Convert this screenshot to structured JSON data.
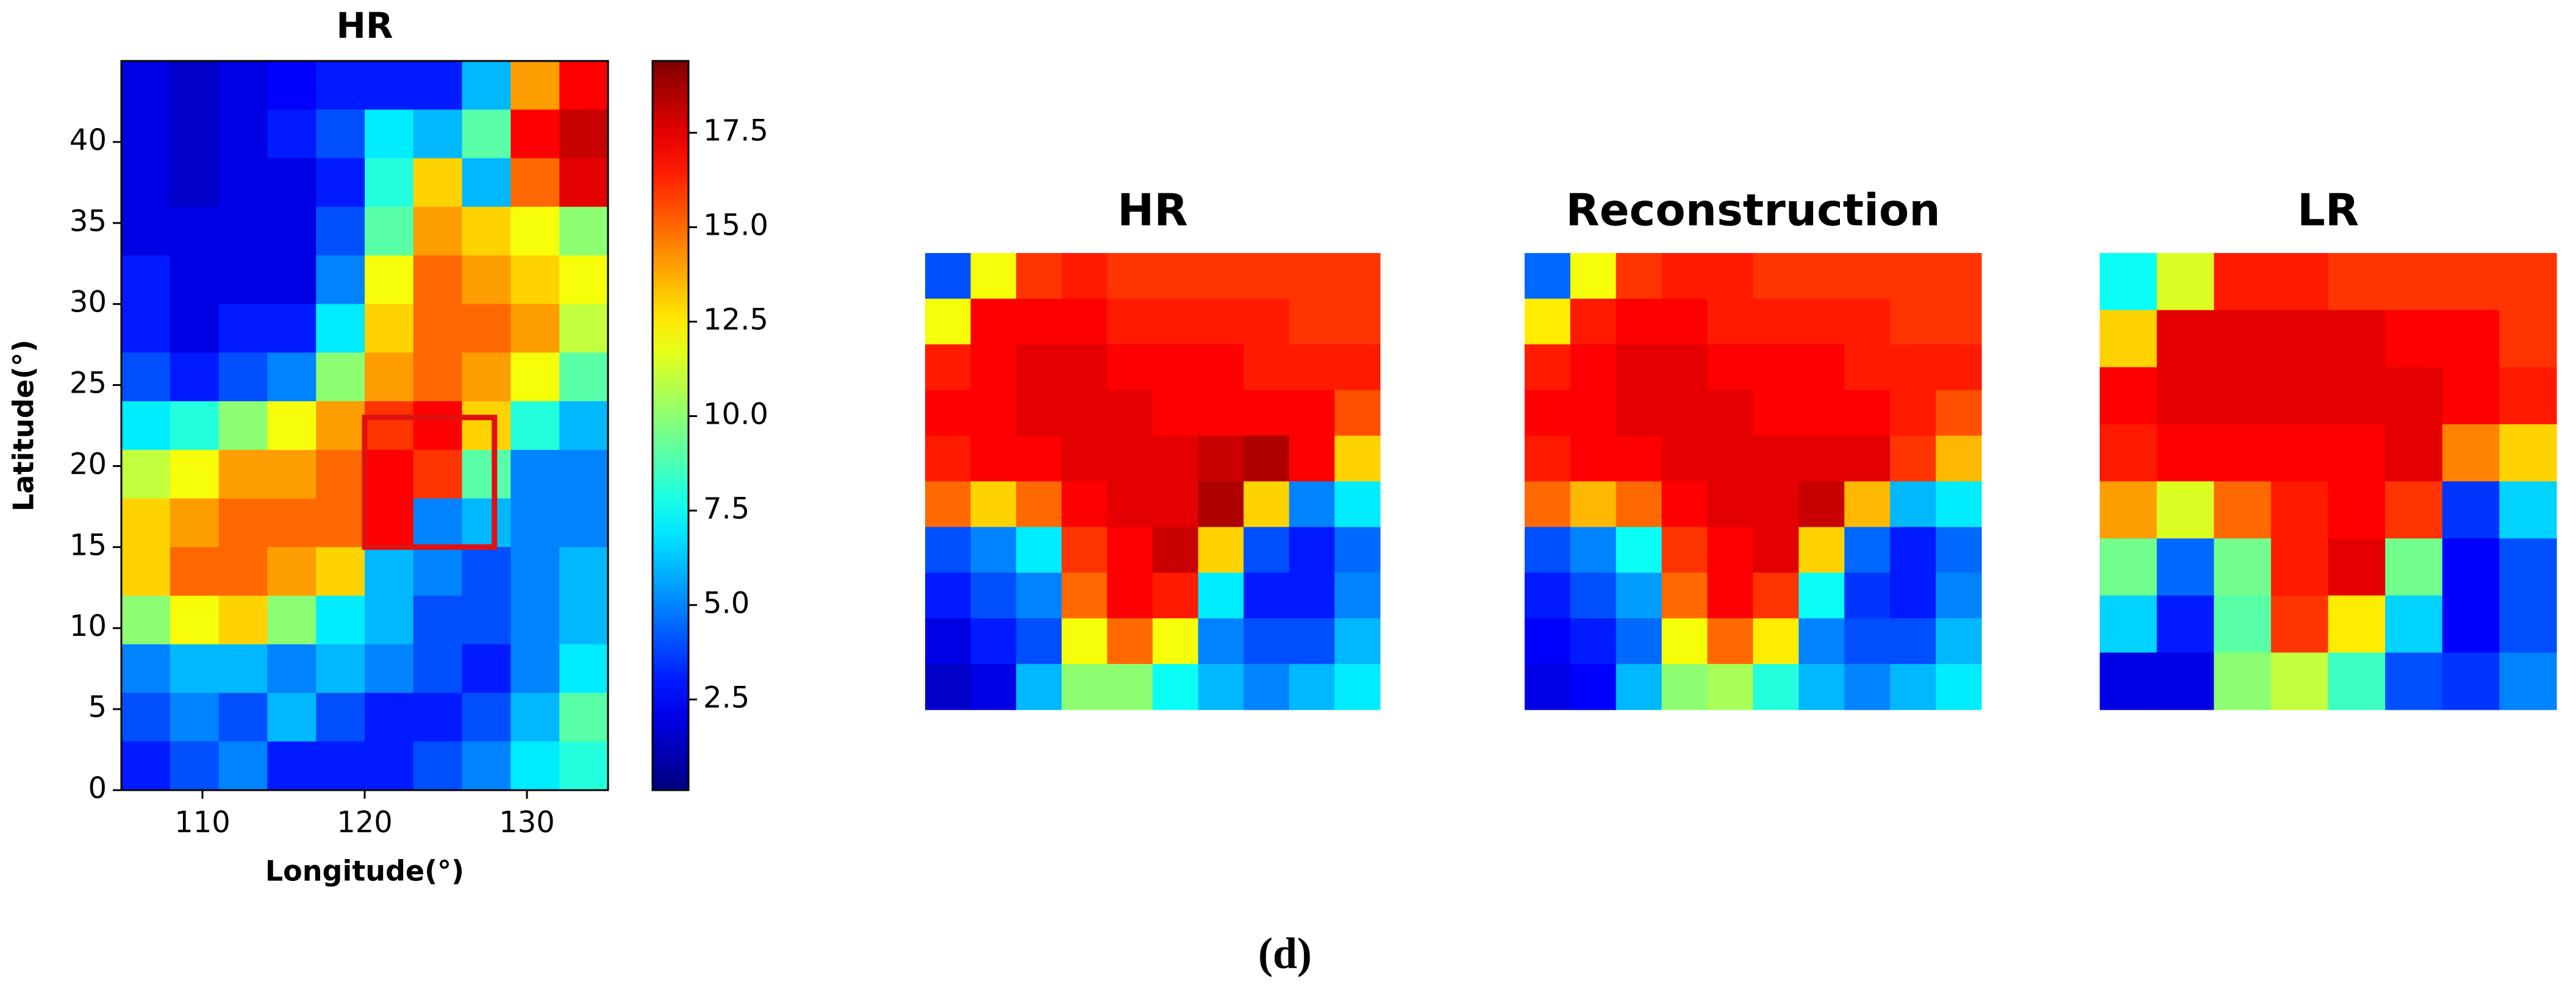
{
  "chart_data": [
    {
      "type": "heatmap",
      "title": "HR",
      "x_label": "Longitude(°)",
      "y_label": "Latitude(°)",
      "colormap": "jet",
      "xlim": [
        105,
        135
      ],
      "ylim": [
        0,
        45
      ],
      "xticks": [
        110,
        120,
        130
      ],
      "yticks": [
        0,
        5,
        10,
        15,
        20,
        25,
        30,
        35,
        40
      ],
      "clim": [
        0.1,
        19.4
      ],
      "colorbar": {
        "ticks": [
          2.5,
          {
            "value": 5,
            "label": "5.0"
          },
          7.5,
          {
            "value": 10,
            "label": "10.0"
          },
          12.5,
          {
            "value": 15,
            "label": "15.0"
          },
          17.5
        ]
      },
      "highlight_box": {
        "x": [
          120,
          128
        ],
        "y": [
          15,
          23
        ],
        "color": "#e01010"
      },
      "z": [
        [
          2,
          1.5,
          2,
          2.5,
          3,
          3,
          3,
          6,
          14,
          17
        ],
        [
          2,
          1.5,
          2,
          3,
          4,
          7,
          6,
          9,
          17,
          18
        ],
        [
          2,
          1.5,
          2,
          2,
          3,
          8,
          13,
          6,
          15,
          17.5
        ],
        [
          2,
          2,
          2,
          2,
          4,
          9,
          14,
          13,
          12,
          10
        ],
        [
          3,
          2,
          2,
          2,
          5,
          12,
          15,
          14,
          13,
          12
        ],
        [
          3,
          2,
          3,
          3,
          7,
          13,
          15,
          15,
          14,
          11
        ],
        [
          4,
          3,
          4,
          5,
          10,
          14,
          15,
          14,
          12,
          9
        ],
        [
          7,
          8,
          10,
          12,
          14,
          16,
          17,
          13,
          8,
          6
        ],
        [
          11,
          12,
          14,
          14,
          15,
          17,
          16,
          9,
          5,
          5
        ],
        [
          13,
          14,
          15,
          15,
          15,
          17,
          5,
          6,
          5,
          5
        ],
        [
          13,
          15,
          15,
          14,
          13,
          6,
          5,
          4,
          5,
          6
        ],
        [
          10,
          12,
          13,
          10,
          7,
          6,
          4,
          4,
          5,
          6
        ],
        [
          5,
          6,
          6,
          5,
          6,
          5,
          4,
          3,
          5,
          7
        ],
        [
          4,
          5,
          4,
          6,
          4,
          3,
          3,
          4,
          6,
          9
        ],
        [
          3,
          4,
          5,
          3,
          3,
          3,
          4,
          5,
          7,
          8
        ]
      ]
    },
    {
      "type": "heatmap",
      "title": "HR",
      "colormap": "jet",
      "clim": [
        0.1,
        19.4
      ],
      "z": [
        [
          4,
          12,
          16,
          16.5,
          16,
          16,
          16,
          16,
          16,
          16
        ],
        [
          12,
          17,
          17,
          17,
          16.5,
          16.5,
          16.5,
          16.5,
          16,
          16
        ],
        [
          16.5,
          17,
          17.5,
          17.5,
          17,
          17,
          17,
          16.5,
          16.5,
          16.5
        ],
        [
          17,
          17,
          17.5,
          17.5,
          17.5,
          17,
          17,
          17,
          17,
          15.5
        ],
        [
          16.5,
          17,
          17,
          17.5,
          17.5,
          17.5,
          18,
          18.5,
          17,
          13
        ],
        [
          15,
          13,
          15,
          17,
          17.5,
          17.5,
          18.5,
          13,
          5,
          7
        ],
        [
          4,
          5,
          7,
          16,
          17,
          18,
          13,
          4,
          3,
          4.5
        ],
        [
          3,
          4,
          5,
          15,
          17,
          16.5,
          7,
          3,
          3,
          5
        ],
        [
          2,
          3,
          4,
          12,
          15,
          12,
          5,
          4,
          4,
          6
        ],
        [
          1.5,
          2,
          6,
          10,
          10,
          7.5,
          6,
          5,
          6,
          7
        ]
      ]
    },
    {
      "type": "heatmap",
      "title": "Reconstruction",
      "colormap": "jet",
      "clim": [
        0.1,
        19.4
      ],
      "z": [
        [
          4.5,
          12,
          16,
          16.5,
          16.5,
          16,
          16,
          16,
          16,
          16
        ],
        [
          12.5,
          16.5,
          17,
          17,
          16.5,
          16.5,
          16.5,
          16.5,
          16,
          16
        ],
        [
          16.5,
          17,
          17.5,
          17.5,
          17,
          17,
          17,
          16.5,
          16.5,
          16.5
        ],
        [
          17,
          17,
          17.5,
          17.5,
          17.5,
          17,
          17,
          17,
          16.5,
          15.5
        ],
        [
          16.5,
          17,
          17,
          17.5,
          17.5,
          17.5,
          17.5,
          17.5,
          16,
          13.5
        ],
        [
          15,
          13.5,
          15,
          17,
          17.5,
          17.5,
          18,
          13.5,
          6,
          7
        ],
        [
          4,
          5,
          7.5,
          16,
          17,
          17.5,
          13,
          4.5,
          3,
          4.5
        ],
        [
          3,
          4,
          5.5,
          15,
          17,
          16,
          7.5,
          3.5,
          3,
          5
        ],
        [
          2.5,
          3,
          4.5,
          12,
          15,
          12.5,
          5,
          4,
          4,
          6
        ],
        [
          2,
          2.5,
          6,
          10,
          10.5,
          8,
          6,
          5,
          6,
          7
        ]
      ]
    },
    {
      "type": "heatmap",
      "title": "LR",
      "colormap": "jet",
      "clim": [
        0.1,
        19.4
      ],
      "z": [
        [
          7.5,
          11.5,
          16.5,
          16.5,
          16,
          16,
          16,
          16
        ],
        [
          13,
          17.5,
          17.5,
          17.5,
          17.5,
          17,
          17,
          16
        ],
        [
          17,
          17.5,
          17.5,
          17.5,
          17.5,
          17.5,
          17,
          16.5
        ],
        [
          16.5,
          17,
          17,
          17,
          17,
          17.5,
          14.5,
          13
        ],
        [
          14,
          11.5,
          15,
          16.5,
          17,
          16,
          3.5,
          6.5
        ],
        [
          9.5,
          4.5,
          9.5,
          16.5,
          17.5,
          9.5,
          2.5,
          4
        ],
        [
          6.5,
          3,
          9,
          16,
          12.5,
          6.5,
          2.5,
          4
        ],
        [
          2,
          2,
          10,
          11,
          8.5,
          4,
          3.5,
          5
        ]
      ]
    }
  ],
  "caption": "(d)"
}
